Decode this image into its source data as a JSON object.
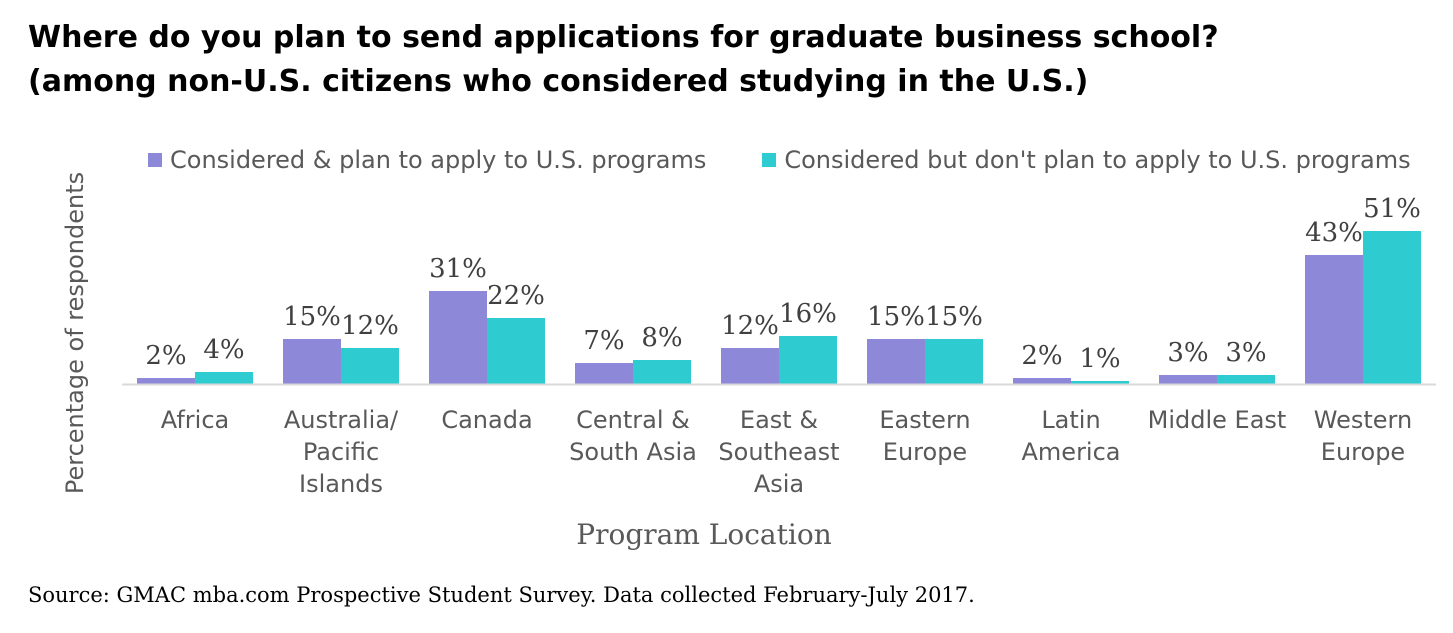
{
  "chart_data": {
    "type": "bar",
    "title_line1": "Where do you plan to send applications for graduate business school?",
    "title_line2": "(among non-U.S. citizens who considered studying in the U.S.)",
    "xlabel": "Program Location",
    "ylabel": "Percentage of respondents",
    "ylim": [
      0,
      55
    ],
    "grid": false,
    "legend_position": "top",
    "categories": [
      [
        "Africa"
      ],
      [
        "Australia/",
        "Pacific",
        "Islands"
      ],
      [
        "Canada"
      ],
      [
        "Central &",
        "South Asia"
      ],
      [
        "East &",
        "Southeast",
        "Asia"
      ],
      [
        "Eastern",
        "Europe"
      ],
      [
        "Latin",
        "America"
      ],
      [
        "Middle East"
      ],
      [
        "Western",
        "Europe"
      ]
    ],
    "series": [
      {
        "name": "Considered & plan to apply to U.S. programs",
        "color": "#8E88D8",
        "values": [
          2,
          15,
          31,
          7,
          12,
          15,
          2,
          3,
          43
        ],
        "labels": [
          "2%",
          "15%",
          "31%",
          "7%",
          "12%",
          "15%",
          "2%",
          "3%",
          "43%"
        ]
      },
      {
        "name": "Considered but don't plan to apply to U.S. programs",
        "color": "#2ECBD0",
        "values": [
          4,
          12,
          22,
          8,
          16,
          15,
          1,
          3,
          51
        ],
        "labels": [
          "4%",
          "12%",
          "22%",
          "8%",
          "16%",
          "15%",
          "1%",
          "3%",
          "51%"
        ]
      }
    ],
    "source": "Source: GMAC mba.com Prospective Student Survey. Data collected February-July 2017."
  }
}
